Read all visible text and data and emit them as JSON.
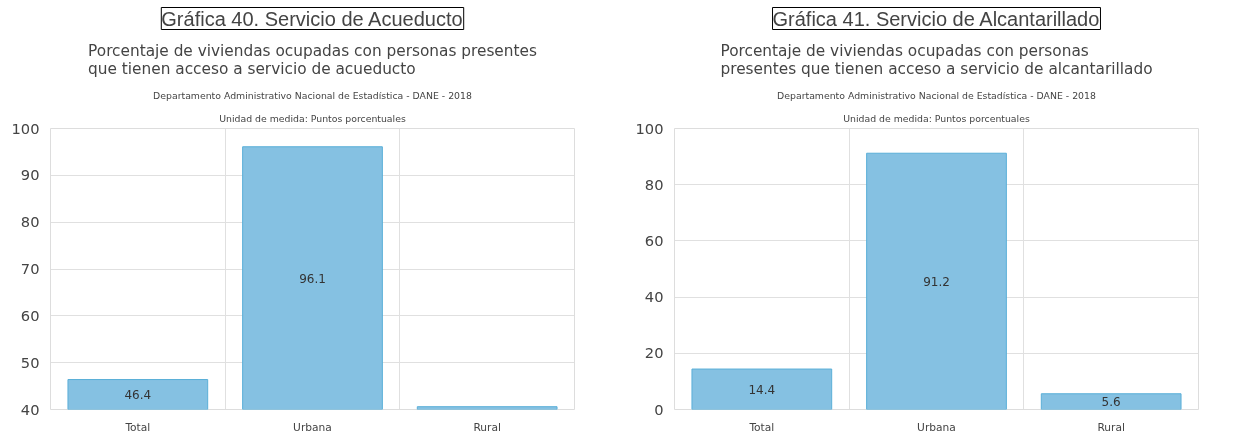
{
  "chart_data": [
    {
      "type": "bar",
      "title": "Gráfica 40. Servicio de Acueducto",
      "subtitle": "Porcentaje de viviendas ocupadas con personas presentes\nque tienen acceso a servicio de acueducto",
      "annotations": [
        "Departamento Administrativo Nacional de Estadística - DANE - 2018",
        "Unidad de medida: Puntos porcentuales"
      ],
      "categories": [
        "Total",
        "Urbana",
        "Rural"
      ],
      "values": [
        46.4,
        96.1,
        40.6
      ],
      "value_labels": [
        "46.4",
        "96.1",
        null
      ],
      "color": "#85c1e2",
      "ylim": [
        40,
        100
      ],
      "yticks": [
        40,
        50,
        60,
        70,
        80,
        90,
        100
      ],
      "grid": true
    },
    {
      "type": "bar",
      "title": "Gráfica 41. Servicio de Alcantarillado",
      "subtitle": "Porcentaje de viviendas ocupadas con personas\npresentes que tienen acceso a servicio de alcantarillado",
      "annotations": [
        "Departamento Administrativo Nacional de Estadística - DANE - 2018",
        "Unidad de medida: Puntos porcentuales"
      ],
      "categories": [
        "Total",
        "Urbana",
        "Rural"
      ],
      "values": [
        14.4,
        91.2,
        5.6
      ],
      "data_labels": true,
      "color": "#85c1e2",
      "ylim": [
        0,
        100
      ],
      "yticks": [
        0,
        20,
        40,
        60,
        80,
        100
      ],
      "grid": true
    }
  ]
}
